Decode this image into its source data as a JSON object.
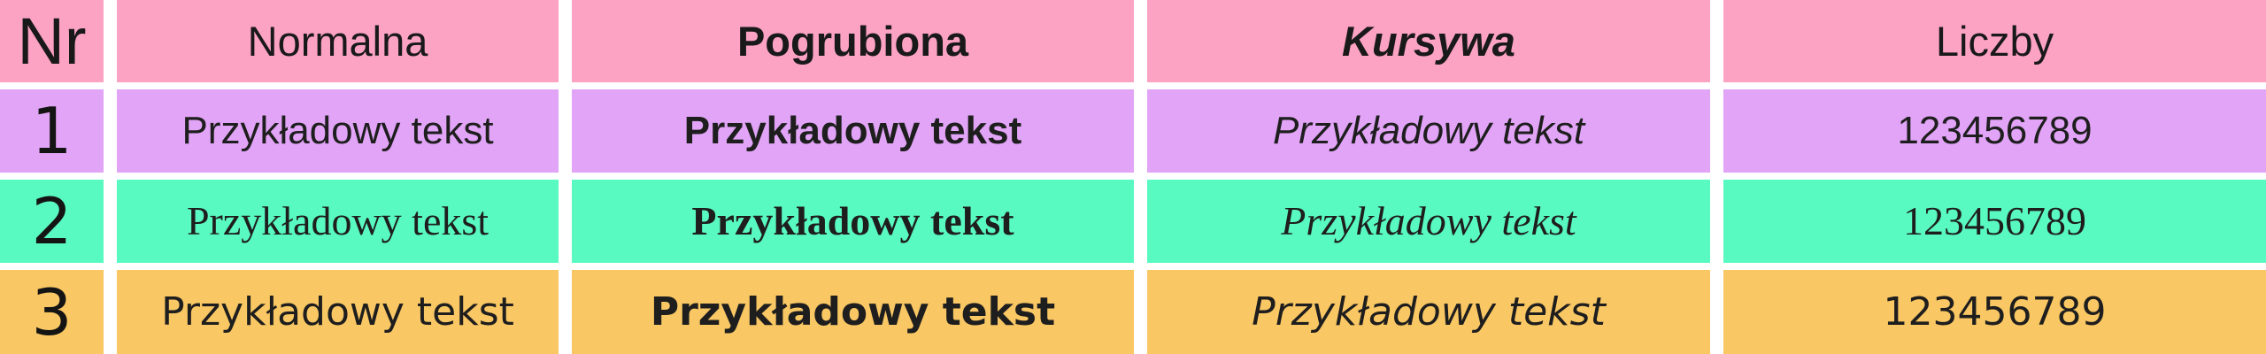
{
  "table": {
    "title": "font-styles-sample-table",
    "header": {
      "bg": "#fca2c3",
      "nr": "Nr",
      "normal": "Normalna",
      "bold": "Pogrubiona",
      "italic": "Kursywa",
      "numbers": "Liczby"
    },
    "rows": [
      {
        "bg": "#e2a4f7",
        "nr": "1",
        "normal": "Przykładowy tekst",
        "bold": "Przykładowy tekst",
        "italic": "Przykładowy tekst",
        "numbers": "123456789"
      },
      {
        "bg": "#59f9c2",
        "nr": "2",
        "normal": "Przykładowy tekst",
        "bold": "Przykładowy tekst",
        "italic": "Przykładowy tekst",
        "numbers": "123456789"
      },
      {
        "bg": "#f9c763",
        "nr": "3",
        "normal": "Przykładowy tekst",
        "bold": "Przykładowy tekst",
        "italic": "Przykładowy tekst",
        "numbers": "123456789"
      }
    ],
    "colors": {
      "gutter": "#ffffff",
      "text": "#1e1e1e"
    }
  }
}
